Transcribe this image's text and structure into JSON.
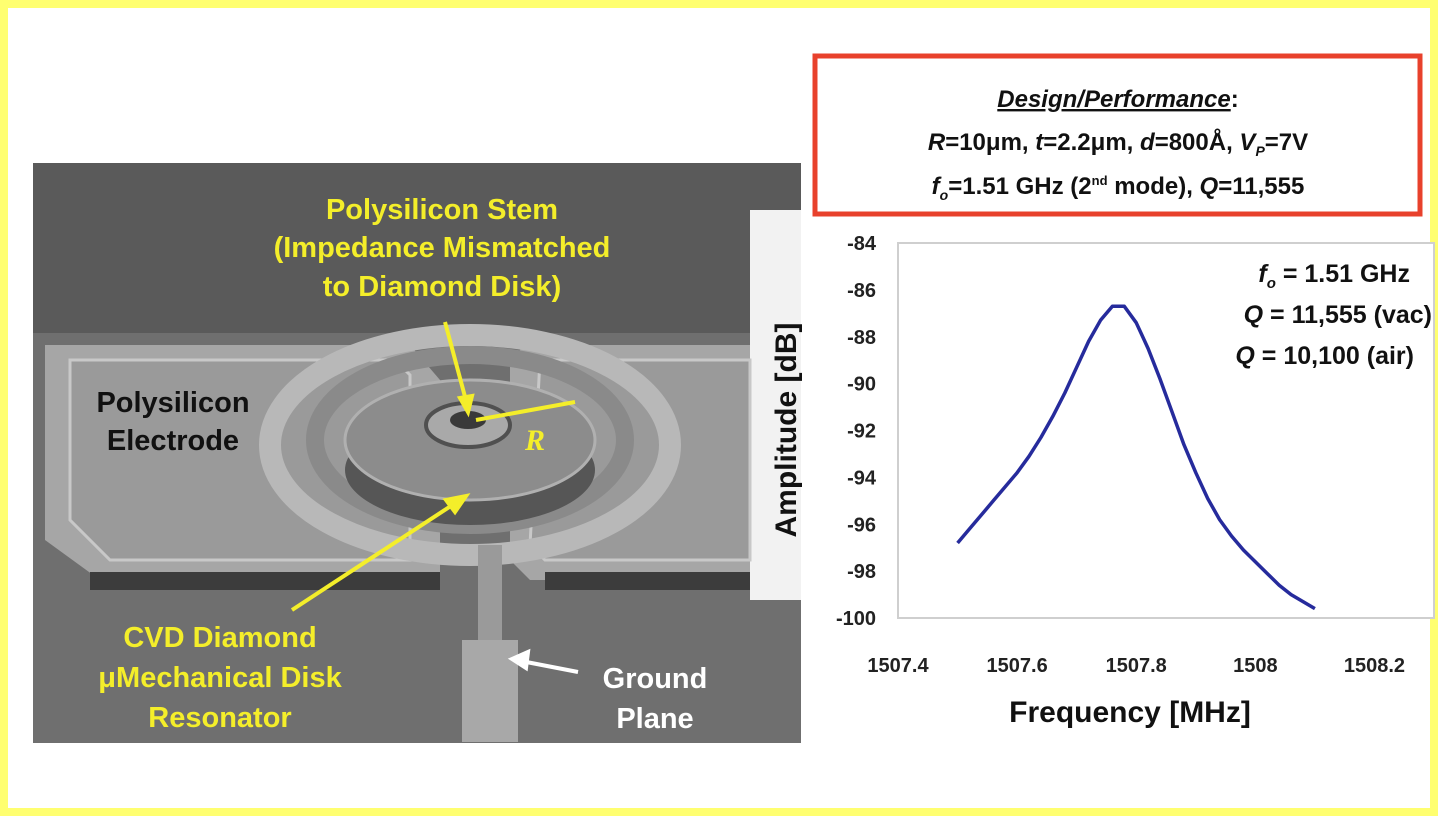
{
  "chart_data": {
    "type": "line",
    "x_label": "Frequency [MHz]",
    "y_label": "Amplitude [dB]",
    "x": [
      1507.5,
      1507.52,
      1507.54,
      1507.56,
      1507.58,
      1507.6,
      1507.62,
      1507.64,
      1507.66,
      1507.68,
      1507.7,
      1507.72,
      1507.74,
      1507.76,
      1507.78,
      1507.8,
      1507.82,
      1507.84,
      1507.86,
      1507.88,
      1507.9,
      1507.92,
      1507.94,
      1507.96,
      1507.98,
      1508.0,
      1508.02,
      1508.04,
      1508.06,
      1508.08,
      1508.1
    ],
    "series": [
      {
        "color": "#262b9c",
        "values": [
          -96.8,
          -96.2,
          -95.6,
          -95.0,
          -94.4,
          -93.8,
          -93.1,
          -92.3,
          -91.4,
          -90.4,
          -89.3,
          -88.2,
          -87.3,
          -86.7,
          -86.7,
          -87.4,
          -88.5,
          -89.8,
          -91.2,
          -92.6,
          -93.8,
          -94.9,
          -95.8,
          -96.5,
          -97.1,
          -97.6,
          -98.1,
          -98.6,
          -99.0,
          -99.3,
          -99.6
        ]
      }
    ],
    "xlim": [
      1507.4,
      1508.3
    ],
    "xticks": [
      1507.4,
      1507.6,
      1507.8,
      1508,
      1508.2
    ],
    "ylim": [
      -100,
      -84
    ],
    "yticks": [
      -84,
      -86,
      -88,
      -90,
      -92,
      -94,
      -96,
      -98,
      -100
    ],
    "grid": false,
    "annotations": [
      [
        "f",
        "o",
        " = 1.51 GHz"
      ],
      [
        "Q",
        " = 11,555 (vac)"
      ],
      [
        "Q",
        " = 10,100 (air)"
      ]
    ]
  },
  "design_box": {
    "title": [
      "Design/Performance",
      ":"
    ],
    "line1": [
      "R",
      "=10μm, ",
      "t",
      "=2.2μm, ",
      "d",
      "=800Å, ",
      "V",
      "P",
      "=7V"
    ],
    "line2": [
      "f",
      "o",
      "=1.51 GHz (2",
      "nd",
      " mode), ",
      "Q",
      "=11,555"
    ]
  },
  "image_labels": {
    "stem": [
      "Polysilicon Stem",
      "(Impedance Mismatched",
      "to Diamond Disk)"
    ],
    "electrode": [
      "Polysilicon",
      "Electrode"
    ],
    "resonator": [
      "CVD Diamond",
      "μMechanical Disk",
      "Resonator"
    ],
    "ground": [
      "Ground",
      "Plane"
    ],
    "radius": "R"
  }
}
